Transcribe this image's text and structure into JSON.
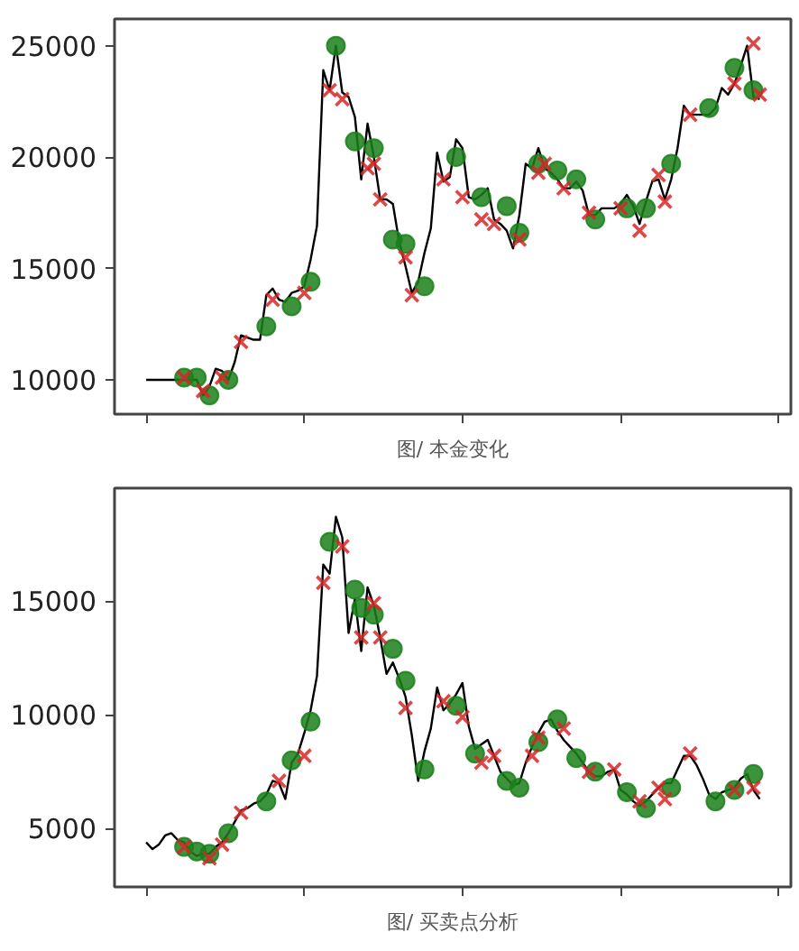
{
  "chart_data": [
    {
      "type": "line",
      "xlabel": "图/ 本金变化",
      "ylim": [
        8460,
        26200
      ],
      "yticks": [
        10000,
        15000,
        20000,
        25000
      ],
      "tick_labels": "y",
      "grid": false,
      "categories": [
        null,
        null,
        null,
        null,
        null,
        null,
        null,
        null,
        null,
        null,
        null,
        null,
        null,
        null,
        null,
        null,
        null,
        null,
        null,
        null,
        null,
        null,
        null,
        null,
        null,
        null,
        null,
        null,
        null,
        null,
        null,
        null,
        null,
        null,
        null,
        null,
        null,
        null,
        null,
        null,
        null,
        null,
        null,
        null,
        null,
        null,
        null,
        null,
        null,
        null,
        null,
        null,
        null,
        null,
        null,
        null,
        null,
        null,
        null,
        null,
        null,
        null,
        null,
        null,
        null,
        null,
        null,
        null,
        null,
        null,
        null,
        null,
        null,
        null,
        null,
        null,
        null,
        null,
        null,
        null,
        null,
        null,
        null,
        null,
        null,
        null,
        null,
        null,
        null,
        null,
        null,
        null,
        null,
        null,
        null,
        null,
        null,
        null
      ],
      "series": [
        {
          "type": "line",
          "color": "#000000",
          "marker": "none",
          "values": [
            10000,
            10000,
            10000,
            10000,
            10000,
            10000,
            10000,
            10000,
            10000,
            9300,
            9700,
            10500,
            10400,
            10000,
            10800,
            12000,
            11900,
            11800,
            11800,
            13800,
            14100,
            13600,
            13500,
            13900,
            14000,
            14200,
            15400,
            16900,
            23900,
            23000,
            25000,
            22900,
            22700,
            21800,
            19000,
            21500,
            20000,
            18100,
            18100,
            17900,
            16200,
            15100,
            13900,
            14400,
            15700,
            16800,
            20200,
            18900,
            19100,
            20800,
            20400,
            18200,
            18100,
            18300,
            18600,
            17200,
            17000,
            16700,
            15900,
            17400,
            19700,
            19500,
            20400,
            19500,
            19300,
            19000,
            18600,
            18600,
            18900,
            18500,
            17400,
            17400,
            17700,
            17700,
            17700,
            17900,
            18300,
            17800,
            17000,
            18000,
            18900,
            19000,
            18100,
            19000,
            20400,
            22300,
            21900,
            21900,
            21900,
            21900,
            22200,
            23100,
            22800,
            23300,
            24100,
            25000,
            22700,
            22600
          ]
        },
        {
          "type": "scatter",
          "color": "#1a801a",
          "marker": "circle",
          "values": [
            null,
            null,
            null,
            null,
            null,
            null,
            10100,
            null,
            10100,
            null,
            9300,
            null,
            null,
            10000,
            null,
            null,
            null,
            null,
            null,
            12400,
            null,
            null,
            null,
            13300,
            null,
            null,
            14400,
            null,
            null,
            null,
            25000,
            null,
            null,
            20700,
            null,
            null,
            20400,
            null,
            null,
            16300,
            null,
            16100,
            null,
            null,
            14200,
            null,
            null,
            null,
            null,
            20000,
            null,
            null,
            null,
            18200,
            null,
            null,
            null,
            17800,
            null,
            16600,
            null,
            null,
            19700,
            null,
            null,
            19400,
            null,
            null,
            19000,
            null,
            null,
            17200,
            null,
            null,
            null,
            null,
            17700,
            null,
            null,
            17700,
            null,
            null,
            null,
            19700,
            null,
            null,
            null,
            null,
            null,
            22200,
            null,
            null,
            null,
            24000,
            null,
            null,
            23000,
            null
          ]
        },
        {
          "type": "scatter",
          "color": "#d62728",
          "marker": "cross",
          "values": [
            null,
            null,
            null,
            null,
            null,
            null,
            10100,
            null,
            null,
            9500,
            null,
            null,
            10100,
            null,
            null,
            11700,
            null,
            null,
            null,
            null,
            13600,
            null,
            null,
            null,
            null,
            13900,
            null,
            null,
            null,
            23000,
            null,
            22600,
            null,
            null,
            null,
            19500,
            19700,
            18100,
            null,
            null,
            null,
            15500,
            13800,
            null,
            null,
            null,
            null,
            19000,
            null,
            null,
            18200,
            null,
            null,
            17200,
            null,
            17000,
            null,
            null,
            null,
            16300,
            null,
            null,
            19300,
            19700,
            null,
            null,
            18600,
            null,
            null,
            null,
            17500,
            null,
            null,
            null,
            null,
            17700,
            null,
            null,
            16700,
            null,
            null,
            19200,
            18000,
            null,
            null,
            null,
            21900,
            null,
            null,
            null,
            null,
            null,
            null,
            23300,
            null,
            null,
            25100,
            22800
          ]
        }
      ]
    },
    {
      "type": "line",
      "xlabel": "图/ 买卖点分析",
      "ylim": [
        2440,
        19960
      ],
      "yticks": [
        5000,
        10000,
        15000
      ],
      "tick_labels": "y",
      "grid": false,
      "categories": [
        null,
        null,
        null,
        null,
        null,
        null,
        null,
        null,
        null,
        null,
        null,
        null,
        null,
        null,
        null,
        null,
        null,
        null,
        null,
        null,
        null,
        null,
        null,
        null,
        null,
        null,
        null,
        null,
        null,
        null,
        null,
        null,
        null,
        null,
        null,
        null,
        null,
        null,
        null,
        null,
        null,
        null,
        null,
        null,
        null,
        null,
        null,
        null,
        null,
        null,
        null,
        null,
        null,
        null,
        null,
        null,
        null,
        null,
        null,
        null,
        null,
        null,
        null,
        null,
        null,
        null,
        null,
        null,
        null,
        null,
        null,
        null,
        null,
        null,
        null,
        null,
        null,
        null,
        null,
        null,
        null,
        null,
        null,
        null,
        null,
        null,
        null,
        null,
        null,
        null,
        null,
        null,
        null,
        null,
        null,
        null,
        null,
        null
      ],
      "series": [
        {
          "type": "line",
          "color": "#000000",
          "marker": "none",
          "values": [
            4400,
            4100,
            4300,
            4700,
            4800,
            4500,
            4400,
            4000,
            3800,
            3900,
            3900,
            4200,
            4400,
            4800,
            5300,
            5800,
            5900,
            6100,
            6200,
            6500,
            7100,
            7000,
            6300,
            7900,
            8300,
            9200,
            10200,
            11700,
            16600,
            16200,
            18700,
            17800,
            13600,
            15100,
            12800,
            15600,
            14800,
            13400,
            11800,
            12300,
            11600,
            10800,
            9100,
            7100,
            8400,
            9400,
            11200,
            10200,
            10500,
            10900,
            11400,
            9500,
            8500,
            8700,
            8900,
            8200,
            7500,
            7200,
            6900,
            7000,
            7900,
            8600,
            9200,
            9700,
            9800,
            9300,
            8900,
            8600,
            8300,
            7900,
            7500,
            7300,
            7300,
            7500,
            7600,
            6700,
            6500,
            6200,
            6000,
            6200,
            6500,
            6800,
            7000,
            7000,
            7600,
            8200,
            8200,
            7800,
            7200,
            6500,
            6300,
            6600,
            6700,
            6800,
            7200,
            7400,
            6700,
            6300
          ]
        },
        {
          "type": "scatter",
          "color": "#1a801a",
          "marker": "circle",
          "values": [
            null,
            null,
            null,
            null,
            null,
            null,
            4200,
            null,
            4000,
            null,
            3900,
            null,
            null,
            4800,
            null,
            null,
            null,
            null,
            null,
            6200,
            null,
            null,
            null,
            8000,
            null,
            null,
            9700,
            null,
            null,
            17600,
            null,
            null,
            null,
            15500,
            14700,
            null,
            14400,
            null,
            null,
            12900,
            null,
            11500,
            null,
            null,
            7600,
            null,
            null,
            null,
            null,
            10400,
            null,
            null,
            8300,
            null,
            null,
            null,
            null,
            7100,
            null,
            6800,
            null,
            null,
            8800,
            null,
            null,
            9800,
            null,
            null,
            8100,
            null,
            null,
            7500,
            null,
            null,
            null,
            null,
            6600,
            null,
            null,
            5900,
            null,
            null,
            null,
            6800,
            null,
            null,
            null,
            null,
            null,
            null,
            6200,
            null,
            null,
            6700,
            null,
            null,
            7400,
            null
          ]
        },
        {
          "type": "scatter",
          "color": "#d62728",
          "marker": "cross",
          "values": [
            null,
            null,
            null,
            null,
            null,
            null,
            4200,
            null,
            null,
            null,
            3700,
            null,
            4300,
            null,
            null,
            5700,
            null,
            null,
            null,
            null,
            null,
            7100,
            null,
            null,
            null,
            8200,
            null,
            null,
            15800,
            null,
            null,
            17400,
            null,
            null,
            13400,
            null,
            14900,
            13400,
            null,
            null,
            null,
            10300,
            null,
            null,
            null,
            null,
            null,
            10600,
            null,
            null,
            9900,
            null,
            null,
            7900,
            null,
            8200,
            null,
            null,
            null,
            null,
            null,
            8200,
            9000,
            null,
            null,
            null,
            9400,
            null,
            null,
            null,
            7500,
            null,
            null,
            null,
            7600,
            null,
            null,
            null,
            6200,
            null,
            null,
            6800,
            6300,
            null,
            null,
            null,
            8300,
            null,
            null,
            null,
            null,
            null,
            null,
            6700,
            null,
            null,
            6800,
            null
          ]
        }
      ]
    }
  ]
}
